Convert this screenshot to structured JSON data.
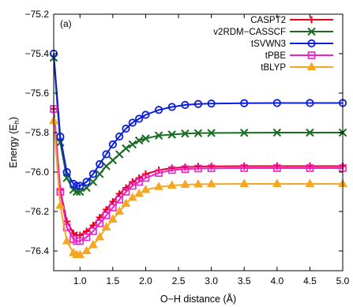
{
  "chart_data": {
    "type": "line",
    "panel_label": "(a)",
    "xlabel": "O−H distance (Å)",
    "ylabel_main": "Energy (E",
    "ylabel_sub": "h",
    "ylabel_close": ")",
    "xlim": [
      0.6,
      5.0
    ],
    "ylim": [
      -76.5,
      -75.2
    ],
    "x_ticks": [
      1.0,
      1.5,
      2.0,
      2.5,
      3.0,
      3.5,
      4.0,
      4.5,
      5.0
    ],
    "x_tick_labels": [
      "1.0",
      "1.5",
      "2.0",
      "2.5",
      "3.0",
      "3.5",
      "4.0",
      "4.5",
      "5.0"
    ],
    "y_ticks": [
      -75.2,
      -75.4,
      -75.6,
      -75.8,
      -76.0,
      -76.2,
      -76.4
    ],
    "y_tick_labels": [
      "−75.2",
      "−75.4",
      "−75.6",
      "−75.8",
      "−76.0",
      "−76.2",
      "−76.4"
    ],
    "grid": false,
    "legend_position": "top-right",
    "series": [
      {
        "name": "CASPT2",
        "color": "#e8001c",
        "marker": "plus",
        "x": [
          0.6,
          0.7,
          0.8,
          0.9,
          0.95,
          1.0,
          1.1,
          1.2,
          1.3,
          1.4,
          1.5,
          1.6,
          1.7,
          1.8,
          1.9,
          2.0,
          2.2,
          2.4,
          2.6,
          2.8,
          3.0,
          3.5,
          4.0,
          4.5,
          5.0
        ],
        "y": [
          -75.68,
          -76.09,
          -76.25,
          -76.31,
          -76.32,
          -76.32,
          -76.3,
          -76.27,
          -76.23,
          -76.19,
          -76.15,
          -76.11,
          -76.08,
          -76.05,
          -76.03,
          -76.01,
          -75.99,
          -75.98,
          -75.975,
          -75.972,
          -75.971,
          -75.97,
          -75.97,
          -75.97,
          -75.97
        ]
      },
      {
        "name": "v2RDM−CASSCF",
        "color": "#1a6b24",
        "marker": "cross",
        "x": [
          0.6,
          0.7,
          0.8,
          0.9,
          0.95,
          1.0,
          1.1,
          1.2,
          1.3,
          1.4,
          1.5,
          1.6,
          1.7,
          1.8,
          1.9,
          2.0,
          2.2,
          2.4,
          2.6,
          2.8,
          3.0,
          3.5,
          4.0,
          4.5,
          5.0
        ],
        "y": [
          -75.42,
          -75.85,
          -76.03,
          -76.09,
          -76.1,
          -76.1,
          -76.08,
          -76.05,
          -76.01,
          -75.97,
          -75.94,
          -75.91,
          -75.88,
          -75.86,
          -75.84,
          -75.83,
          -75.815,
          -75.81,
          -75.805,
          -75.803,
          -75.802,
          -75.801,
          -75.8,
          -75.8,
          -75.8
        ]
      },
      {
        "name": "tSVWN3",
        "color": "#0a1edc",
        "marker": "circle",
        "x": [
          0.6,
          0.7,
          0.8,
          0.9,
          0.95,
          1.0,
          1.1,
          1.2,
          1.3,
          1.4,
          1.5,
          1.6,
          1.7,
          1.8,
          1.9,
          2.0,
          2.2,
          2.4,
          2.6,
          2.8,
          3.0,
          3.5,
          4.0,
          4.5,
          5.0
        ],
        "y": [
          -75.4,
          -75.82,
          -76.0,
          -76.06,
          -76.07,
          -76.07,
          -76.05,
          -76.01,
          -75.96,
          -75.91,
          -75.86,
          -75.82,
          -75.78,
          -75.75,
          -75.73,
          -75.71,
          -75.685,
          -75.67,
          -75.66,
          -75.655,
          -75.653,
          -75.651,
          -75.65,
          -75.65,
          -75.65
        ]
      },
      {
        "name": "tPBE",
        "color": "#ee1ec8",
        "marker": "square",
        "x": [
          0.6,
          0.7,
          0.8,
          0.9,
          0.95,
          1.0,
          1.1,
          1.2,
          1.3,
          1.4,
          1.5,
          1.6,
          1.7,
          1.8,
          1.9,
          2.0,
          2.2,
          2.4,
          2.6,
          2.8,
          3.0,
          3.5,
          4.0,
          4.5,
          5.0
        ],
        "y": [
          -75.68,
          -76.1,
          -76.28,
          -76.34,
          -76.35,
          -76.35,
          -76.33,
          -76.3,
          -76.26,
          -76.22,
          -76.18,
          -76.14,
          -76.1,
          -76.07,
          -76.05,
          -76.03,
          -76.005,
          -75.99,
          -75.985,
          -75.982,
          -75.981,
          -75.98,
          -75.98,
          -75.98,
          -75.98
        ]
      },
      {
        "name": "tBLYP",
        "color": "#f5a623",
        "marker": "triangle",
        "x": [
          0.6,
          0.7,
          0.8,
          0.9,
          0.95,
          1.0,
          1.1,
          1.2,
          1.3,
          1.4,
          1.5,
          1.6,
          1.7,
          1.8,
          1.9,
          2.0,
          2.2,
          2.4,
          2.6,
          2.8,
          3.0,
          3.5,
          4.0,
          4.5,
          5.0
        ],
        "y": [
          -75.74,
          -76.17,
          -76.35,
          -76.41,
          -76.42,
          -76.42,
          -76.4,
          -76.37,
          -76.33,
          -76.28,
          -76.24,
          -76.2,
          -76.16,
          -76.13,
          -76.11,
          -76.09,
          -76.075,
          -76.068,
          -76.064,
          -76.062,
          -76.061,
          -76.06,
          -76.06,
          -76.06,
          -76.06
        ]
      }
    ]
  }
}
